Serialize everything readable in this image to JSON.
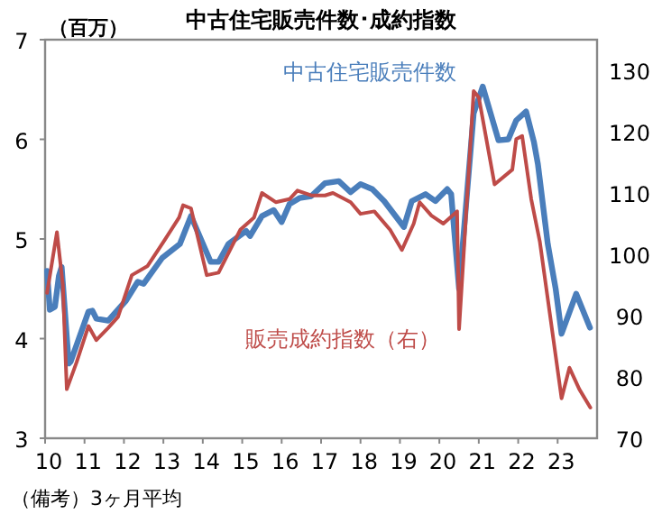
{
  "chart_data": {
    "type": "line",
    "title": "中古住宅販売件数･成約指数",
    "ylabel": "（百万）",
    "annotations": [
      "（備考）3ヶ月平均"
    ],
    "xlim": [
      2010,
      2024
    ],
    "xticks": [
      {
        "value": 2010,
        "label": "10"
      },
      {
        "value": 2011,
        "label": "11"
      },
      {
        "value": 2012,
        "label": "12"
      },
      {
        "value": 2013,
        "label": "13"
      },
      {
        "value": 2014,
        "label": "14"
      },
      {
        "value": 2015,
        "label": "15"
      },
      {
        "value": 2016,
        "label": "16"
      },
      {
        "value": 2017,
        "label": "17"
      },
      {
        "value": 2018,
        "label": "18"
      },
      {
        "value": 2019,
        "label": "19"
      },
      {
        "value": 2020,
        "label": "20"
      },
      {
        "value": 2021,
        "label": "21"
      },
      {
        "value": 2022,
        "label": "22"
      },
      {
        "value": 2023,
        "label": "23"
      }
    ],
    "ylim": [
      3,
      7
    ],
    "yticks": [
      3,
      4,
      5,
      6,
      7
    ],
    "y2lim": [
      70,
      135
    ],
    "y2ticks": [
      70,
      80,
      90,
      100,
      110,
      120,
      130
    ],
    "legend": false,
    "grid": false,
    "series": [
      {
        "name": "中古住宅販売件数",
        "color": "#4a7ebb",
        "x": [
          2010.05,
          2010.12,
          2010.25,
          2010.35,
          2010.42,
          2010.6,
          2010.65,
          2011.1,
          2011.2,
          2011.3,
          2011.6,
          2012.05,
          2012.35,
          2012.5,
          2012.97,
          2013.42,
          2013.7,
          2014.2,
          2014.4,
          2014.65,
          2015.1,
          2015.2,
          2015.5,
          2015.8,
          2016.0,
          2016.2,
          2016.45,
          2016.75,
          2017.1,
          2017.45,
          2017.75,
          2018.0,
          2018.3,
          2018.6,
          2019.1,
          2019.3,
          2019.65,
          2019.9,
          2020.2,
          2020.3,
          2020.5,
          2020.87,
          2021.1,
          2021.5,
          2021.75,
          2021.95,
          2022.2,
          2022.4,
          2022.5,
          2022.75,
          2022.95,
          2023.1,
          2023.47,
          2023.82
        ],
        "values": [
          4.68,
          4.29,
          4.32,
          4.63,
          4.72,
          3.75,
          3.77,
          4.27,
          4.28,
          4.2,
          4.18,
          4.38,
          4.57,
          4.55,
          4.81,
          4.95,
          5.23,
          4.77,
          4.77,
          4.95,
          5.08,
          5.03,
          5.23,
          5.29,
          5.17,
          5.35,
          5.41,
          5.43,
          5.56,
          5.58,
          5.47,
          5.55,
          5.5,
          5.38,
          5.12,
          5.38,
          5.45,
          5.38,
          5.5,
          5.45,
          4.5,
          6.26,
          6.53,
          5.99,
          6.0,
          6.19,
          6.28,
          5.97,
          5.75,
          4.95,
          4.5,
          4.05,
          4.45,
          4.11
        ]
      },
      {
        "name": "販売成約指数（右）",
        "color": "#be4b48",
        "axis": "y2",
        "x": [
          2010.05,
          2010.3,
          2010.45,
          2010.55,
          2010.8,
          2011.1,
          2011.3,
          2011.6,
          2011.85,
          2012.2,
          2012.6,
          2013.0,
          2013.4,
          2013.5,
          2013.7,
          2014.1,
          2014.4,
          2014.95,
          2015.3,
          2015.5,
          2015.85,
          2016.2,
          2016.4,
          2016.75,
          2017.1,
          2017.3,
          2017.75,
          2018.0,
          2018.35,
          2018.75,
          2019.05,
          2019.35,
          2019.5,
          2019.8,
          2020.1,
          2020.45,
          2020.5,
          2020.87,
          2021.0,
          2021.4,
          2021.85,
          2021.95,
          2022.1,
          2022.33,
          2022.55,
          2023.1,
          2023.3,
          2023.55,
          2023.83
        ],
        "values": [
          93.7,
          103.6,
          95,
          78,
          82.4,
          88.3,
          86,
          88,
          89.8,
          96.6,
          98.1,
          102,
          106,
          108,
          107.5,
          96.6,
          97,
          104,
          106,
          110,
          108.5,
          109,
          110.4,
          109.6,
          109.6,
          110,
          108.5,
          106.6,
          107,
          104,
          100.7,
          105,
          108.5,
          106.3,
          105,
          107,
          87.8,
          126.6,
          125.6,
          111.4,
          113.8,
          118.8,
          119.3,
          109,
          102,
          76.5,
          81.5,
          78,
          75
        ]
      }
    ]
  }
}
